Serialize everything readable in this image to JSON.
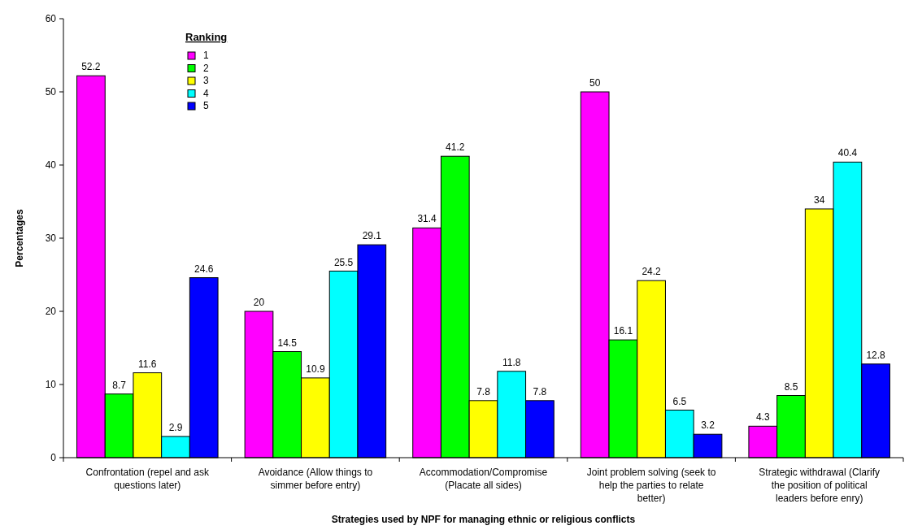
{
  "chart_data": {
    "type": "bar",
    "xlabel": "Strategies used by NPF for managing ethnic or religious conflicts",
    "ylabel": "Percentages",
    "legend_title": "Ranking",
    "legend": "top left",
    "data_labels": true,
    "grid": false,
    "categories": [
      "Confrontation (repel and ask questions later)",
      "Avoidance (Allow things to simmer before entry)",
      "Accommodation/Compromise (Placate all sides)",
      "Joint problem solving (seek to help the parties to relate better)",
      "Strategic withdrawal (Clarify the position of political leaders before enry)"
    ],
    "series": [
      {
        "name": "1",
        "color": "#ff00ff",
        "values": [
          52.2,
          20,
          31.4,
          50,
          4.3
        ]
      },
      {
        "name": "2",
        "color": "#00ff00",
        "values": [
          8.7,
          14.5,
          41.2,
          16.1,
          8.5
        ]
      },
      {
        "name": "3",
        "color": "#ffff00",
        "values": [
          11.6,
          10.9,
          7.8,
          24.2,
          34
        ]
      },
      {
        "name": "4",
        "color": "#00ffff",
        "values": [
          2.9,
          25.5,
          11.8,
          6.5,
          40.4
        ]
      },
      {
        "name": "5",
        "color": "#0000ff",
        "values": [
          24.6,
          29.1,
          7.8,
          3.2,
          12.8
        ]
      }
    ],
    "ylim": [
      0,
      60
    ],
    "yticks": [
      0,
      10,
      20,
      30,
      40,
      50,
      60
    ]
  }
}
